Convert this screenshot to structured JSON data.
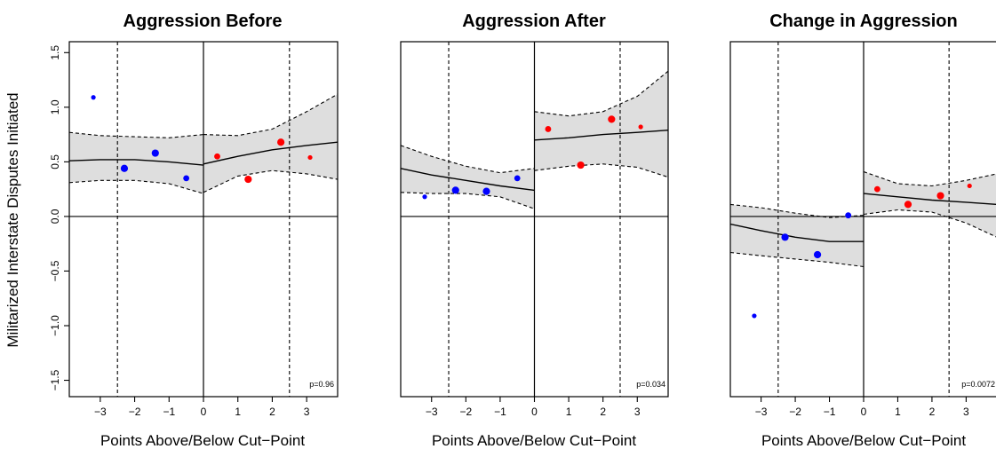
{
  "figure": {
    "ylabel": "Militarized Interstate Disputes Initiated"
  },
  "chart_data": [
    {
      "type": "scatter",
      "title": "Aggression Before",
      "xlabel": "Points Above/Below Cut−Point",
      "ylabel": "Militarized Interstate Disputes Initiated",
      "xlim": [
        -3.9,
        3.9
      ],
      "ylim": [
        -1.65,
        1.6
      ],
      "xticks": [
        -3,
        -2,
        -1,
        0,
        1,
        2,
        3
      ],
      "xtick_labels": [
        "−3",
        "−2",
        "−1",
        "0",
        "1",
        "2",
        "3"
      ],
      "yticks": [
        -1.5,
        -1.0,
        -0.5,
        0.0,
        0.5,
        1.0,
        1.5
      ],
      "ytick_labels": [
        "−1.5",
        "−1.0",
        "−0.5",
        "0.0",
        "0.5",
        "1.0",
        "1.5"
      ],
      "cutoff_lines": [
        -2.5,
        2.5
      ],
      "annotation": "p=0.96",
      "points": [
        {
          "x": -3.2,
          "y": 1.09,
          "size": "small",
          "group": "below"
        },
        {
          "x": -2.3,
          "y": 0.44,
          "size": "large",
          "group": "below"
        },
        {
          "x": -1.4,
          "y": 0.58,
          "size": "large",
          "group": "below"
        },
        {
          "x": -0.5,
          "y": 0.35,
          "size": "medium",
          "group": "below"
        },
        {
          "x": 0.4,
          "y": 0.55,
          "size": "medium",
          "group": "above"
        },
        {
          "x": 1.3,
          "y": 0.34,
          "size": "large",
          "group": "above"
        },
        {
          "x": 2.25,
          "y": 0.68,
          "size": "large",
          "group": "above"
        },
        {
          "x": 3.1,
          "y": 0.54,
          "size": "small",
          "group": "above"
        }
      ],
      "fit_left": {
        "x": [
          -3.9,
          -3.0,
          -2.0,
          -1.0,
          0.0
        ],
        "y": [
          0.51,
          0.52,
          0.52,
          0.5,
          0.47
        ],
        "lower": [
          0.31,
          0.33,
          0.33,
          0.3,
          0.21
        ],
        "upper": [
          0.77,
          0.74,
          0.73,
          0.72,
          0.75
        ]
      },
      "fit_right": {
        "x": [
          0.0,
          1.0,
          2.0,
          3.0,
          3.9
        ],
        "y": [
          0.48,
          0.55,
          0.61,
          0.65,
          0.68
        ],
        "lower": [
          0.22,
          0.37,
          0.42,
          0.39,
          0.34
        ],
        "upper": [
          0.75,
          0.74,
          0.8,
          0.96,
          1.12
        ]
      }
    },
    {
      "type": "scatter",
      "title": "Aggression After",
      "xlabel": "Points Above/Below Cut−Point",
      "xlim": [
        -3.9,
        3.9
      ],
      "ylim": [
        -1.65,
        1.6
      ],
      "xticks": [
        -3,
        -2,
        -1,
        0,
        1,
        2,
        3
      ],
      "xtick_labels": [
        "−3",
        "−2",
        "−1",
        "0",
        "1",
        "2",
        "3"
      ],
      "cutoff_lines": [
        -2.5,
        2.5
      ],
      "annotation": "p=0.034",
      "points": [
        {
          "x": -3.2,
          "y": 0.18,
          "size": "small",
          "group": "below"
        },
        {
          "x": -2.3,
          "y": 0.24,
          "size": "large",
          "group": "below"
        },
        {
          "x": -1.4,
          "y": 0.23,
          "size": "large",
          "group": "below"
        },
        {
          "x": -0.5,
          "y": 0.35,
          "size": "medium",
          "group": "below"
        },
        {
          "x": 0.4,
          "y": 0.8,
          "size": "medium",
          "group": "above"
        },
        {
          "x": 1.35,
          "y": 0.47,
          "size": "large",
          "group": "above"
        },
        {
          "x": 2.25,
          "y": 0.89,
          "size": "large",
          "group": "above"
        },
        {
          "x": 3.1,
          "y": 0.82,
          "size": "small",
          "group": "above"
        }
      ],
      "fit_left": {
        "x": [
          -3.9,
          -3.0,
          -2.0,
          -1.0,
          0.0
        ],
        "y": [
          0.44,
          0.38,
          0.33,
          0.28,
          0.24
        ],
        "lower": [
          0.22,
          0.21,
          0.21,
          0.18,
          0.07
        ],
        "upper": [
          0.65,
          0.55,
          0.46,
          0.4,
          0.44
        ]
      },
      "fit_right": {
        "x": [
          0.0,
          1.0,
          2.0,
          3.0,
          3.9
        ],
        "y": [
          0.7,
          0.72,
          0.75,
          0.77,
          0.79
        ],
        "lower": [
          0.42,
          0.46,
          0.48,
          0.45,
          0.36
        ],
        "upper": [
          0.96,
          0.92,
          0.96,
          1.1,
          1.33
        ]
      }
    },
    {
      "type": "scatter",
      "title": "Change in Aggression",
      "xlabel": "Points Above/Below Cut−Point",
      "xlim": [
        -3.9,
        3.9
      ],
      "ylim": [
        -1.65,
        1.6
      ],
      "xticks": [
        -3,
        -2,
        -1,
        0,
        1,
        2,
        3
      ],
      "xtick_labels": [
        "−3",
        "−2",
        "−1",
        "0",
        "1",
        "2",
        "3"
      ],
      "cutoff_lines": [
        -2.5,
        2.5
      ],
      "annotation": "p=0.0072",
      "points": [
        {
          "x": -3.2,
          "y": -0.91,
          "size": "small",
          "group": "below"
        },
        {
          "x": -2.3,
          "y": -0.19,
          "size": "large",
          "group": "below"
        },
        {
          "x": -1.35,
          "y": -0.35,
          "size": "large",
          "group": "below"
        },
        {
          "x": -0.45,
          "y": 0.01,
          "size": "medium",
          "group": "below"
        },
        {
          "x": 0.4,
          "y": 0.25,
          "size": "medium",
          "group": "above"
        },
        {
          "x": 1.3,
          "y": 0.11,
          "size": "large",
          "group": "above"
        },
        {
          "x": 2.25,
          "y": 0.19,
          "size": "large",
          "group": "above"
        },
        {
          "x": 3.1,
          "y": 0.28,
          "size": "small",
          "group": "above"
        }
      ],
      "fit_left": {
        "x": [
          -3.9,
          -3.0,
          -2.0,
          -1.0,
          0.0
        ],
        "y": [
          -0.07,
          -0.13,
          -0.19,
          -0.23,
          -0.23
        ],
        "lower": [
          -0.33,
          -0.36,
          -0.39,
          -0.42,
          -0.46
        ],
        "upper": [
          0.11,
          0.08,
          0.03,
          -0.01,
          0.01
        ]
      },
      "fit_right": {
        "x": [
          0.0,
          1.0,
          2.0,
          3.0,
          3.9
        ],
        "y": [
          0.21,
          0.18,
          0.15,
          0.13,
          0.11
        ],
        "lower": [
          0.02,
          0.06,
          0.04,
          -0.06,
          -0.19
        ],
        "upper": [
          0.41,
          0.3,
          0.28,
          0.33,
          0.39
        ]
      }
    }
  ],
  "colors": {
    "below": "#0000ff",
    "above": "#ff0000",
    "ribbon": "#dedede",
    "axis": "#000000"
  }
}
